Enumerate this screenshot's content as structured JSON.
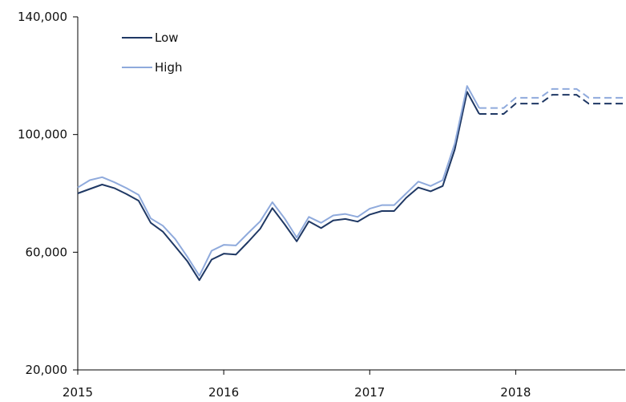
{
  "chart_data": {
    "type": "line",
    "title": "",
    "xlabel": "",
    "ylabel": "",
    "ylim": [
      20000,
      140000
    ],
    "xlim": [
      2015,
      2018.75
    ],
    "y_ticks": [
      20000,
      60000,
      100000,
      140000
    ],
    "y_tick_labels": [
      "20,000",
      "60,000",
      "100,000",
      "140,000"
    ],
    "x_ticks": [
      2015,
      2016,
      2017,
      2018
    ],
    "x_tick_labels": [
      "2015",
      "2016",
      "2017",
      "2018"
    ],
    "grid": false,
    "legend_position": "top-left",
    "projection_starts_at": 2017.75,
    "x": [
      2015.0,
      2015.083,
      2015.167,
      2015.25,
      2015.333,
      2015.417,
      2015.5,
      2015.583,
      2015.667,
      2015.75,
      2015.833,
      2015.917,
      2016.0,
      2016.083,
      2016.167,
      2016.25,
      2016.333,
      2016.417,
      2016.5,
      2016.583,
      2016.667,
      2016.75,
      2016.833,
      2016.917,
      2017.0,
      2017.083,
      2017.167,
      2017.25,
      2017.333,
      2017.417,
      2017.5,
      2017.583,
      2017.667,
      2017.75,
      2017.833,
      2017.917,
      2018.0,
      2018.083,
      2018.167,
      2018.25,
      2018.333,
      2018.417,
      2018.5,
      2018.583,
      2018.667,
      2018.75
    ],
    "series": [
      {
        "name": "Low",
        "color": "#1f3864",
        "values": [
          80000,
          81500,
          83000,
          81800,
          79800,
          77500,
          70000,
          67000,
          62000,
          57000,
          50500,
          57500,
          59500,
          59200,
          63500,
          68000,
          75000,
          69500,
          63700,
          70500,
          68200,
          70800,
          71300,
          70400,
          72800,
          74000,
          74000,
          78500,
          82000,
          80700,
          82500,
          95000,
          114500,
          107000,
          107000,
          107000,
          110500,
          110500,
          110500,
          113500,
          113500,
          113500,
          110500,
          110500,
          110500,
          110500
        ]
      },
      {
        "name": "High",
        "color": "#8faadc",
        "values": [
          82000,
          84500,
          85500,
          83800,
          81800,
          79500,
          71500,
          69000,
          64500,
          58500,
          52000,
          60500,
          62500,
          62300,
          66500,
          70500,
          77000,
          71500,
          65000,
          72000,
          70000,
          72500,
          73000,
          72000,
          74800,
          76000,
          76000,
          80000,
          84000,
          82500,
          84500,
          97000,
          116500,
          109000,
          109000,
          109000,
          112500,
          112500,
          112500,
          115500,
          115500,
          115500,
          112500,
          112500,
          112500,
          112500
        ]
      }
    ]
  }
}
